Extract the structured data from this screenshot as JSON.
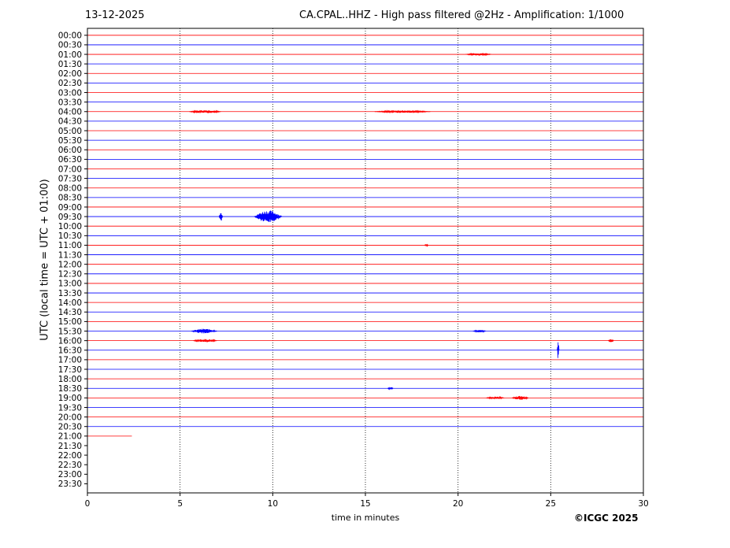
{
  "header": {
    "date": "13-12-2025",
    "title": "CA.CPAL..HHZ - High pass filtered @2Hz - Amplification: 1/1000"
  },
  "footer": {
    "copyright": "©ICGC 2025"
  },
  "chart_data": {
    "type": "line",
    "subtype": "helicorder",
    "xlabel": "time in minutes",
    "ylabel": "UTC (local time = UTC + 01:00)",
    "xlim": [
      0,
      30
    ],
    "xticks": [
      0,
      5,
      10,
      15,
      20,
      25,
      30
    ],
    "vertical_grid_minutes": [
      5,
      10,
      15,
      20,
      25
    ],
    "grid": "vertical dotted",
    "trace_colors": [
      "#ff0000",
      "#0000ff"
    ],
    "row_labels": [
      "00:00",
      "00:30",
      "01:00",
      "01:30",
      "02:00",
      "02:30",
      "03:00",
      "03:30",
      "04:00",
      "04:30",
      "05:00",
      "05:30",
      "06:00",
      "06:30",
      "07:00",
      "07:30",
      "08:00",
      "08:30",
      "09:00",
      "09:30",
      "10:00",
      "10:30",
      "11:00",
      "11:30",
      "12:00",
      "12:30",
      "13:00",
      "13:30",
      "14:00",
      "14:30",
      "15:00",
      "15:30",
      "16:00",
      "16:30",
      "17:00",
      "17:30",
      "18:00",
      "18:30",
      "19:00",
      "19:30",
      "20:00",
      "20:30",
      "21:00",
      "21:30",
      "22:00",
      "22:30",
      "23:00",
      "23:30"
    ],
    "data_end": {
      "row": "21:00",
      "minute": 2.4
    },
    "events": [
      {
        "row": "01:00",
        "start": 20.4,
        "end": 21.8,
        "amp": 1.5
      },
      {
        "row": "04:00",
        "start": 5.5,
        "end": 7.2,
        "amp": 2
      },
      {
        "row": "04:00",
        "start": 15.5,
        "end": 18.5,
        "amp": 1.5
      },
      {
        "row": "09:30",
        "start": 7.1,
        "end": 7.3,
        "amp": 6
      },
      {
        "row": "09:30",
        "start": 9.0,
        "end": 10.5,
        "amp": 8
      },
      {
        "row": "11:00",
        "start": 18.2,
        "end": 18.4,
        "amp": 2
      },
      {
        "row": "15:30",
        "start": 5.6,
        "end": 7.0,
        "amp": 3
      },
      {
        "row": "15:30",
        "start": 20.8,
        "end": 21.5,
        "amp": 1.5
      },
      {
        "row": "16:00",
        "start": 5.7,
        "end": 7.0,
        "amp": 2
      },
      {
        "row": "16:00",
        "start": 28.1,
        "end": 28.4,
        "amp": 2
      },
      {
        "row": "16:30",
        "start": 25.35,
        "end": 25.45,
        "amp": 14
      },
      {
        "row": "18:30",
        "start": 16.2,
        "end": 16.5,
        "amp": 1.5
      },
      {
        "row": "19:00",
        "start": 21.5,
        "end": 22.5,
        "amp": 1.5
      },
      {
        "row": "19:00",
        "start": 22.9,
        "end": 23.8,
        "amp": 2.5
      }
    ]
  }
}
